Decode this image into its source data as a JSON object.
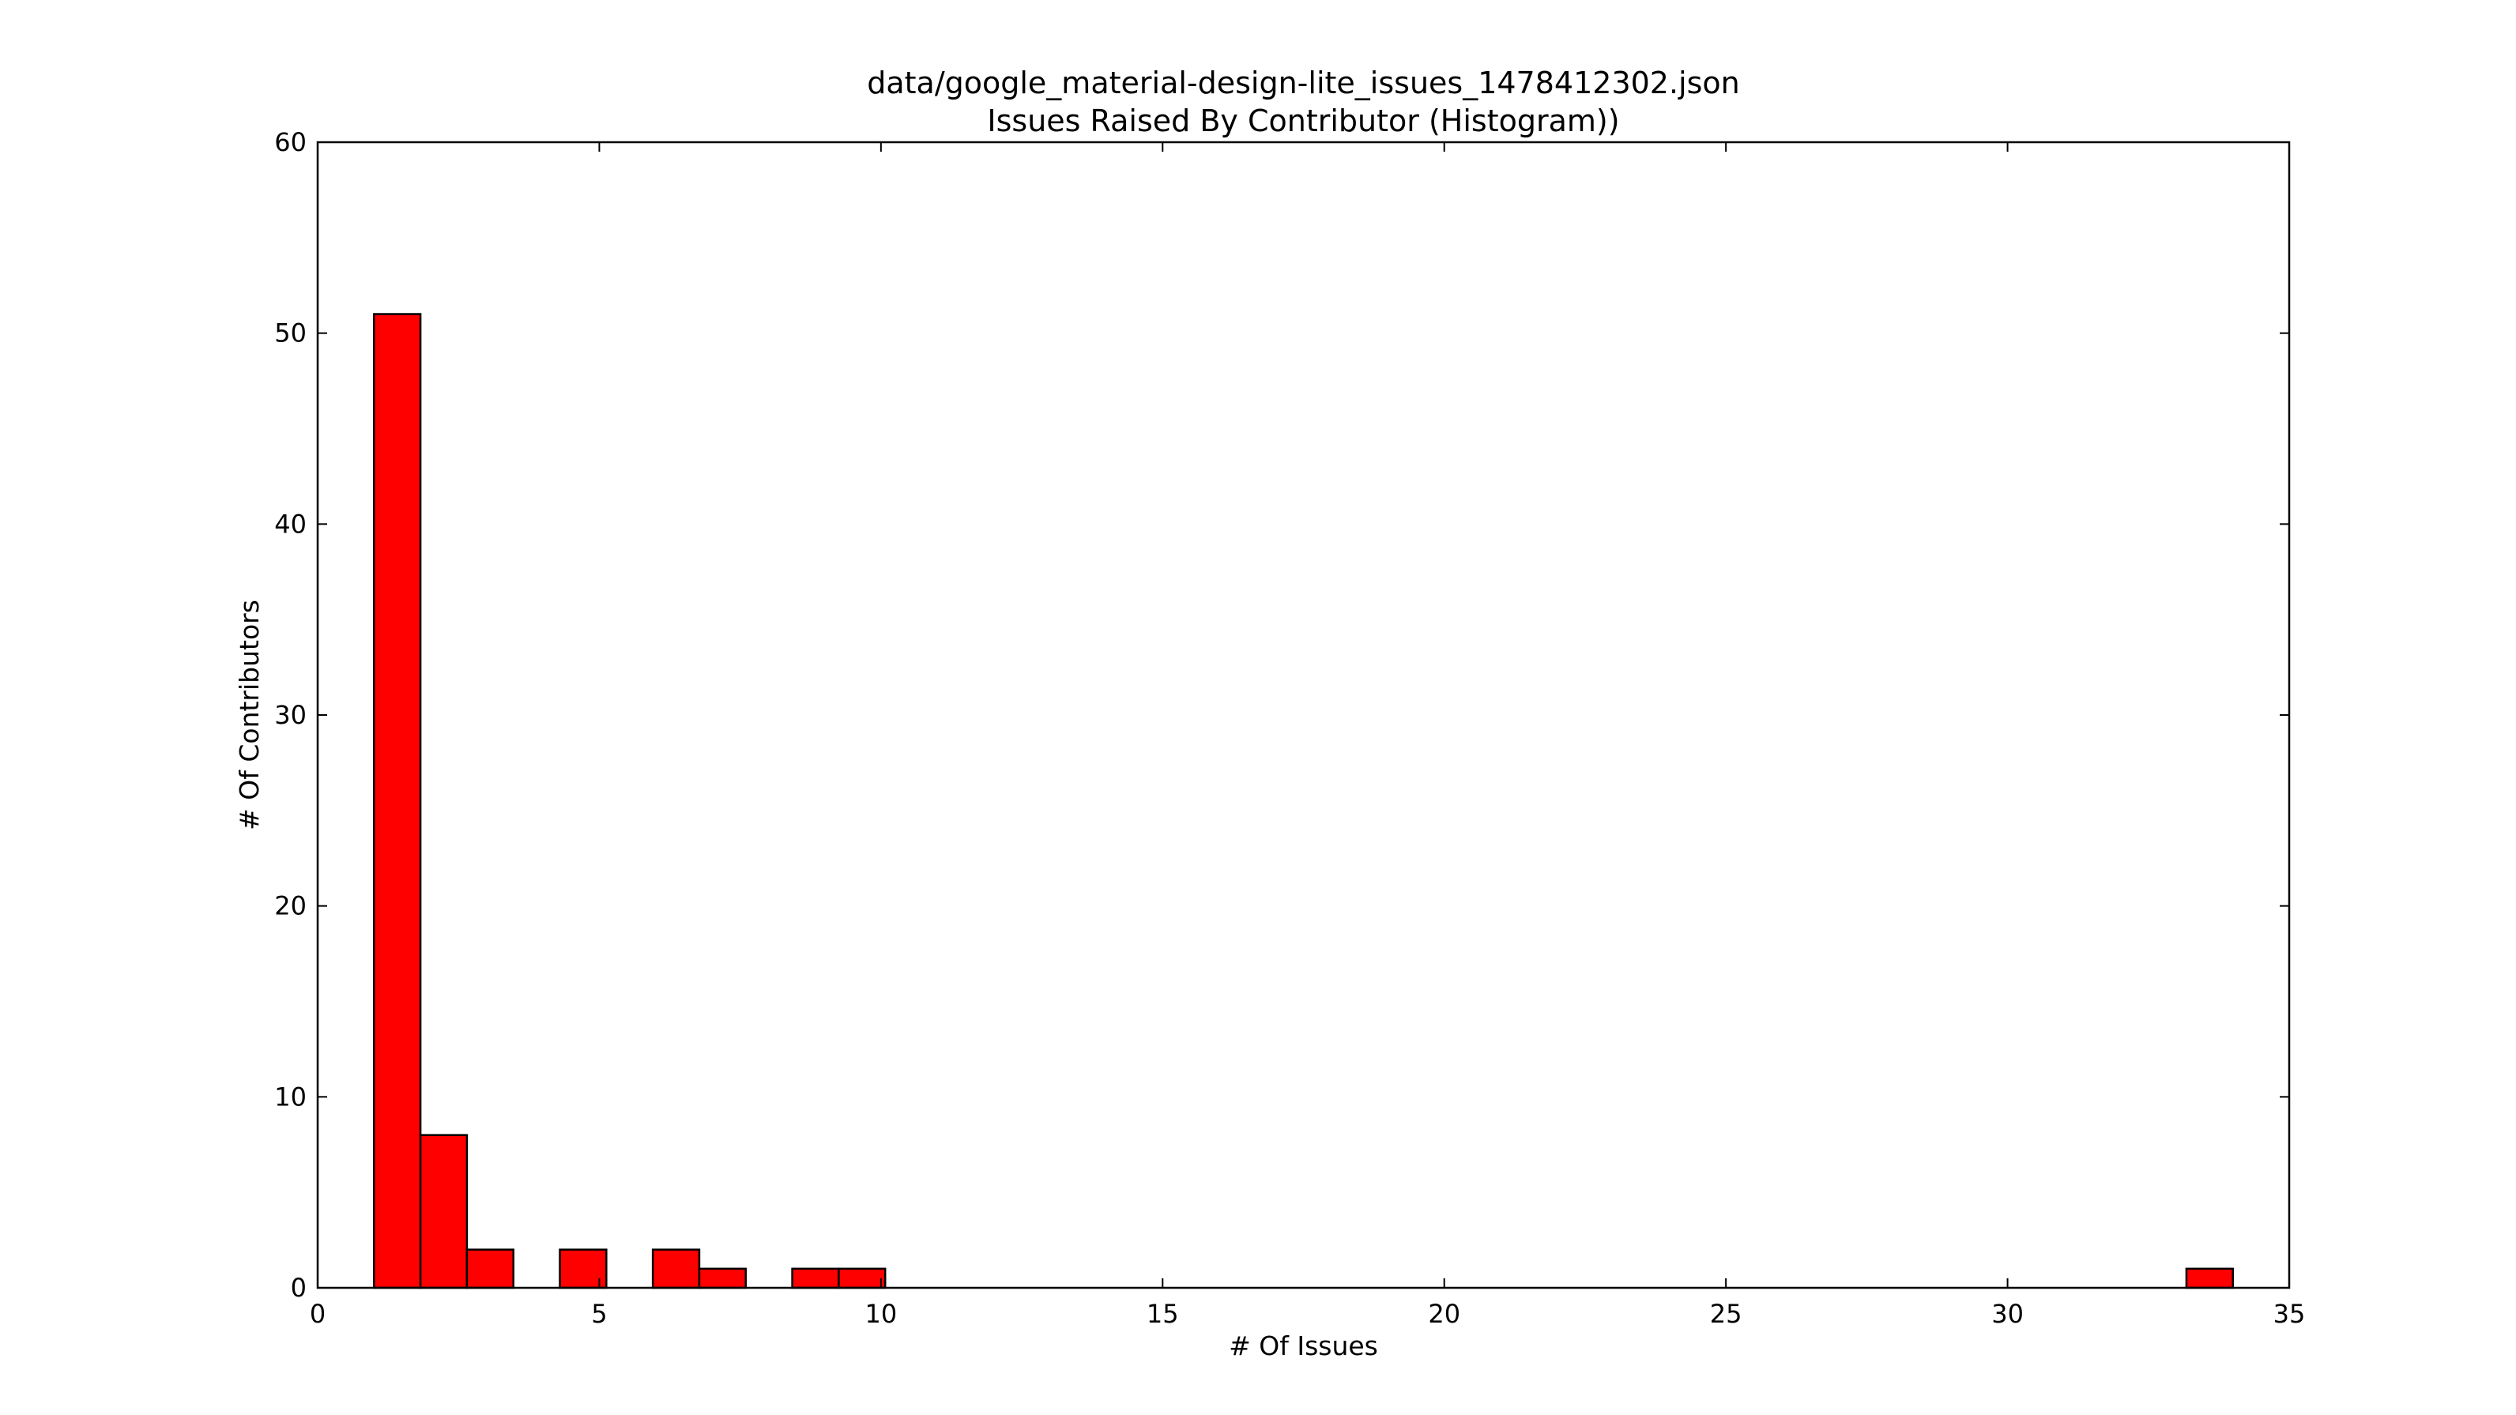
{
  "chart_data": {
    "type": "bar",
    "title": "data/google_material-design-lite_issues_1478412302.json",
    "subtitle": "Issues Raised By Contributor (Histogram))",
    "xlabel": "# Of Issues",
    "ylabel": "# Of Contributors",
    "xlim": [
      0,
      35
    ],
    "ylim": [
      0,
      60
    ],
    "xticks": [
      "0",
      "5",
      "10",
      "15",
      "20",
      "25",
      "30",
      "35"
    ],
    "yticks": [
      "0",
      "10",
      "20",
      "30",
      "40",
      "50",
      "60"
    ],
    "bin_width": 0.825,
    "bins": [
      {
        "x0": 1.0,
        "count": 51
      },
      {
        "x0": 1.825,
        "count": 8
      },
      {
        "x0": 2.65,
        "count": 2
      },
      {
        "x0": 3.475,
        "count": 0
      },
      {
        "x0": 4.3,
        "count": 2
      },
      {
        "x0": 5.125,
        "count": 0
      },
      {
        "x0": 5.95,
        "count": 2
      },
      {
        "x0": 6.775,
        "count": 1
      },
      {
        "x0": 7.6,
        "count": 0
      },
      {
        "x0": 8.425,
        "count": 1
      },
      {
        "x0": 9.25,
        "count": 1
      },
      {
        "x0": 33.175,
        "count": 1
      }
    ],
    "bar_color": "#ff0000",
    "edge_color": "#000000",
    "grid": false,
    "legend": false
  }
}
